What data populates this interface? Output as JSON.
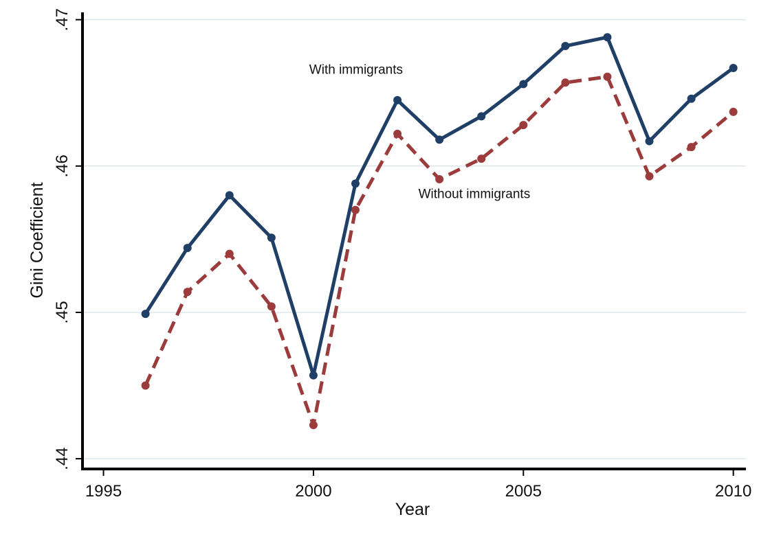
{
  "chart_data": {
    "type": "line",
    "title": "",
    "xlabel": "Year",
    "ylabel": "Gini Coefficient",
    "xlim": [
      1994.5,
      2010.3
    ],
    "ylim": [
      0.4393,
      0.4705
    ],
    "x_ticks": [
      1995,
      2000,
      2005,
      2010
    ],
    "x_tick_labels": [
      "1995",
      "2000",
      "2005",
      "2010"
    ],
    "y_ticks": [
      0.44,
      0.45,
      0.46,
      0.47
    ],
    "y_tick_labels": [
      ".44",
      ".45",
      ".46",
      ".47"
    ],
    "grid": "horizontal",
    "x": [
      1996,
      1997,
      1998,
      1999,
      2000,
      2001,
      2002,
      2003,
      2004,
      2005,
      2006,
      2007,
      2008,
      2009,
      2010
    ],
    "series": [
      {
        "values": [
          0.4499,
          0.4544,
          0.458,
          0.4551,
          0.4457,
          0.4588,
          0.4645,
          0.4618,
          0.4634,
          0.4656,
          0.4682,
          0.4688,
          0.4617,
          0.4646,
          0.4667
        ],
        "color": "#1f3f66",
        "style": "solid"
      },
      {
        "values": [
          0.445,
          0.4514,
          0.454,
          0.4504,
          0.4423,
          0.457,
          0.4622,
          0.4591,
          0.4605,
          0.4628,
          0.4657,
          0.4661,
          0.4593,
          0.4613,
          0.4637
        ],
        "color": "#9b3b3b",
        "style": "dashed"
      }
    ],
    "annotations": [
      {
        "text": "With immigrants",
        "x": 1999.9,
        "y": 0.4663
      },
      {
        "text": "Without immigrants",
        "x": 2002.5,
        "y": 0.4578
      }
    ]
  }
}
